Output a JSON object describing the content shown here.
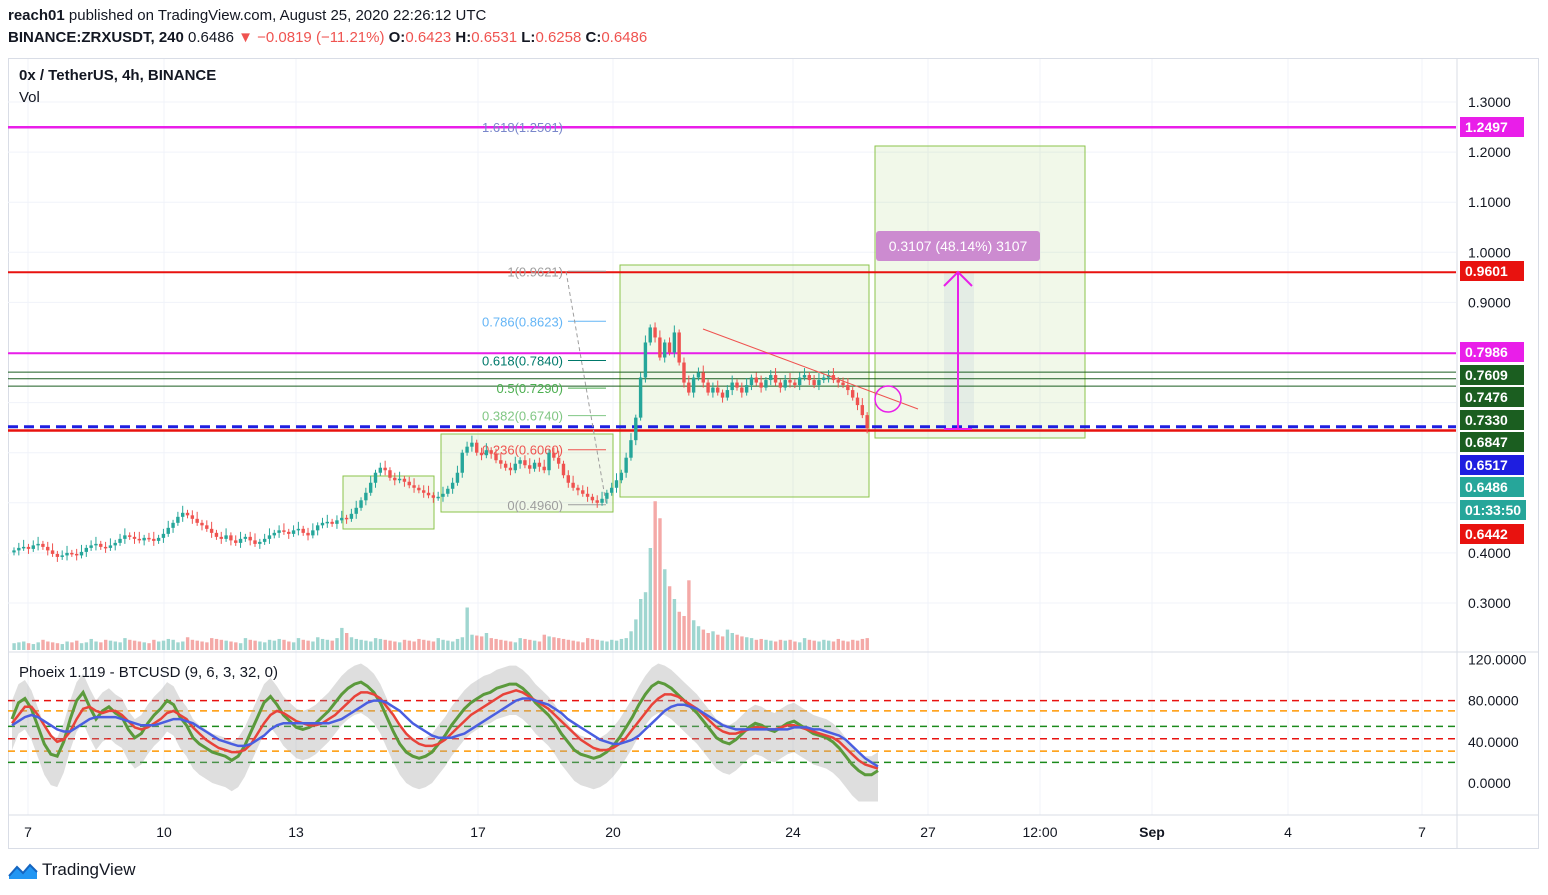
{
  "header": {
    "user": "reach01",
    "published_text": " published on TradingView.com, August 25, 2020 22:26:12 UTC",
    "symbol_line": "BINANCE:ZRXUSDT, 240",
    "price": "0.6486",
    "change": "−0.0819 (−11.21%)",
    "o_label": "O:",
    "o_val": "0.6423",
    "h_label": "H:",
    "h_val": "0.6531",
    "l_label": "L:",
    "l_val": "0.6258",
    "c_label": "C:",
    "c_val": "0.6486"
  },
  "pane": {
    "symbol_title": "0x / TetherUS, 4h, BINANCE",
    "volume_label": "Vol",
    "oscillator_title": "Phoeix 1.119 - BTCUSD (9, 6, 3, 32, 0)"
  },
  "price_tags": [
    {
      "text": "1.2497",
      "color": "#e91ee9"
    },
    {
      "text": "0.9601",
      "color": "#e8120f"
    },
    {
      "text": "0.7986",
      "color": "#e91ee9"
    },
    {
      "text": "0.7609",
      "color": "#1b5e20"
    },
    {
      "text": "0.7476",
      "color": "#1b5e20"
    },
    {
      "text": "0.7330",
      "color": "#1b5e20"
    },
    {
      "text": "0.6847",
      "color": "#1b5e20"
    },
    {
      "text": "0.6517",
      "color": "#1e1ee0"
    },
    {
      "text": "0.6486",
      "color": "#26a69a"
    },
    {
      "text": "01:33:50",
      "color": "#26a69a"
    },
    {
      "text": "0.6442",
      "color": "#e8120f"
    }
  ],
  "measure_label": "0.3107 (48.14%) 3107",
  "fib_labels": [
    {
      "text": "1.618(1.2501)",
      "color": "#7986cb"
    },
    {
      "text": "1(0.9621)",
      "color": "#9e9e9e"
    },
    {
      "text": "0.786(0.8623)",
      "color": "#64b5f6"
    },
    {
      "text": "0.618(0.7840)",
      "color": "#00796b"
    },
    {
      "text": "0.5(0.7290)",
      "color": "#4caf50"
    },
    {
      "text": "0.382(0.6740)",
      "color": "#81c784"
    },
    {
      "text": "0.236(0.6060)",
      "color": "#ef5350"
    },
    {
      "text": "0(0.4960)",
      "color": "#9e9e9e"
    }
  ],
  "footer": {
    "brand": "TradingView"
  },
  "chart_data": [
    {
      "type": "candlestick",
      "title": "0x / TetherUS, 4h, BINANCE",
      "ylim": [
        0.22,
        1.35
      ],
      "y_ticks": [
        "1.3000",
        "1.2000",
        "1.1000",
        "1.0000",
        "0.9000",
        "0.4000",
        "0.3000"
      ],
      "x_ticks": [
        "7",
        "10",
        "13",
        "17",
        "20",
        "24",
        "27",
        "12:00",
        "Sep",
        "4",
        "7"
      ],
      "closes": [
        0.405,
        0.41,
        0.412,
        0.408,
        0.415,
        0.418,
        0.412,
        0.405,
        0.398,
        0.392,
        0.395,
        0.4,
        0.398,
        0.395,
        0.402,
        0.41,
        0.415,
        0.418,
        0.412,
        0.41,
        0.415,
        0.42,
        0.428,
        0.435,
        0.432,
        0.428,
        0.425,
        0.43,
        0.428,
        0.424,
        0.43,
        0.438,
        0.45,
        0.46,
        0.472,
        0.48,
        0.475,
        0.468,
        0.46,
        0.455,
        0.448,
        0.44,
        0.432,
        0.428,
        0.435,
        0.425,
        0.42,
        0.428,
        0.432,
        0.425,
        0.418,
        0.422,
        0.428,
        0.435,
        0.44,
        0.445,
        0.442,
        0.438,
        0.445,
        0.448,
        0.44,
        0.435,
        0.445,
        0.455,
        0.46,
        0.462,
        0.458,
        0.465,
        0.47,
        0.468,
        0.478,
        0.49,
        0.505,
        0.52,
        0.54,
        0.56,
        0.57,
        0.565,
        0.55,
        0.545,
        0.548,
        0.542,
        0.535,
        0.53,
        0.525,
        0.52,
        0.515,
        0.51,
        0.512,
        0.518,
        0.528,
        0.54,
        0.56,
        0.6,
        0.612,
        0.62,
        0.6,
        0.595,
        0.605,
        0.598,
        0.585,
        0.578,
        0.57,
        0.565,
        0.578,
        0.585,
        0.575,
        0.568,
        0.58,
        0.572,
        0.565,
        0.6,
        0.59,
        0.578,
        0.555,
        0.54,
        0.53,
        0.525,
        0.518,
        0.512,
        0.505,
        0.5,
        0.508,
        0.52,
        0.53,
        0.545,
        0.56,
        0.59,
        0.625,
        0.67,
        0.75,
        0.82,
        0.85,
        0.83,
        0.79,
        0.82,
        0.8,
        0.84,
        0.78,
        0.74,
        0.72,
        0.75,
        0.76,
        0.74,
        0.72,
        0.73,
        0.72,
        0.71,
        0.725,
        0.74,
        0.73,
        0.72,
        0.735,
        0.75,
        0.74,
        0.73,
        0.745,
        0.755,
        0.74,
        0.73,
        0.745,
        0.74,
        0.735,
        0.75,
        0.755,
        0.745,
        0.735,
        0.745,
        0.75,
        0.755,
        0.745,
        0.74,
        0.735,
        0.725,
        0.71,
        0.695,
        0.675,
        0.6486
      ],
      "volume": [
        8,
        9,
        10,
        8,
        7,
        9,
        12,
        10,
        9,
        8,
        7,
        10,
        9,
        11,
        8,
        9,
        13,
        10,
        9,
        12,
        11,
        10,
        9,
        14,
        12,
        11,
        10,
        9,
        8,
        12,
        10,
        11,
        13,
        12,
        9,
        10,
        15,
        12,
        11,
        10,
        9,
        14,
        13,
        12,
        11,
        10,
        9,
        8,
        14,
        12,
        11,
        10,
        9,
        12,
        11,
        13,
        12,
        10,
        9,
        14,
        12,
        11,
        10,
        15,
        13,
        12,
        11,
        14,
        26,
        20,
        15,
        13,
        12,
        11,
        10,
        14,
        13,
        12,
        11,
        10,
        9,
        12,
        11,
        10,
        13,
        12,
        11,
        10,
        14,
        12,
        11,
        10,
        13,
        15,
        50,
        18,
        17,
        16,
        20,
        14,
        13,
        12,
        11,
        10,
        9,
        14,
        13,
        12,
        11,
        10,
        18,
        16,
        15,
        14,
        13,
        12,
        11,
        10,
        9,
        14,
        13,
        12,
        11,
        10,
        12,
        11,
        13,
        14,
        22,
        36,
        60,
        68,
        120,
        175,
        155,
        95,
        75,
        60,
        45,
        40,
        82,
        35,
        28,
        24,
        20,
        22,
        18,
        16,
        24,
        20,
        18,
        16,
        15,
        14,
        12,
        13,
        12,
        11,
        10,
        12,
        11,
        12,
        10,
        9,
        14,
        12,
        11,
        10,
        12,
        11,
        10,
        13,
        11,
        10,
        12,
        11,
        13,
        14,
        15,
        16,
        8
      ]
    },
    {
      "type": "line",
      "title": "Phoeix 1.119 - BTCUSD (9, 6, 3, 32, 0)",
      "ylim": [
        -20,
        125
      ],
      "y_ticks": [
        "120.0000",
        "80.0000",
        "40.0000",
        "0.0000"
      ],
      "levels": [
        80,
        70,
        55,
        43,
        31,
        20
      ],
      "series": [
        {
          "color": "#5b9a3c",
          "values": [
            62,
            78,
            82,
            72,
            55,
            38,
            28,
            26,
            40,
            62,
            80,
            88,
            74,
            62,
            70,
            74,
            68,
            64,
            52,
            44,
            48,
            58,
            66,
            72,
            80,
            76,
            64,
            56,
            44,
            38,
            34,
            30,
            28,
            26,
            22,
            26,
            36,
            50,
            64,
            78,
            84,
            76,
            66,
            60,
            54,
            52,
            54,
            58,
            64,
            70,
            78,
            86,
            92,
            96,
            98,
            94,
            88,
            78,
            64,
            50,
            38,
            30,
            26,
            24,
            26,
            30,
            38,
            46,
            56,
            64,
            72,
            78,
            82,
            86,
            88,
            92,
            94,
            96,
            96,
            92,
            86,
            78,
            72,
            66,
            58,
            48,
            40,
            32,
            28,
            26,
            24,
            26,
            30,
            36,
            44,
            54,
            64,
            76,
            86,
            94,
            98,
            96,
            92,
            86,
            80,
            74,
            68,
            60,
            52,
            44,
            40,
            38,
            42,
            48,
            54,
            58,
            56,
            52,
            50,
            54,
            58,
            60,
            56,
            52,
            48,
            46,
            44,
            40,
            34,
            26,
            18,
            12,
            8,
            8,
            12
          ]
        },
        {
          "color": "#e8433a",
          "values": [
            58,
            66,
            74,
            74,
            66,
            56,
            46,
            40,
            42,
            50,
            62,
            72,
            74,
            70,
            68,
            70,
            70,
            66,
            60,
            54,
            52,
            54,
            58,
            62,
            68,
            70,
            66,
            62,
            54,
            48,
            42,
            38,
            34,
            32,
            30,
            30,
            32,
            38,
            48,
            58,
            66,
            70,
            68,
            64,
            60,
            58,
            56,
            56,
            58,
            62,
            66,
            72,
            78,
            84,
            88,
            88,
            86,
            82,
            74,
            66,
            56,
            48,
            42,
            38,
            36,
            36,
            38,
            42,
            48,
            54,
            60,
            66,
            70,
            74,
            78,
            82,
            86,
            88,
            90,
            88,
            84,
            80,
            76,
            72,
            66,
            60,
            54,
            48,
            42,
            38,
            34,
            32,
            32,
            34,
            38,
            44,
            52,
            60,
            68,
            76,
            82,
            86,
            86,
            84,
            80,
            76,
            72,
            66,
            60,
            54,
            50,
            48,
            48,
            50,
            52,
            54,
            54,
            52,
            52,
            54,
            56,
            56,
            54,
            52,
            50,
            48,
            46,
            44,
            40,
            34,
            28,
            22,
            18,
            16,
            14
          ]
        },
        {
          "color": "#4a5ee0",
          "values": [
            56,
            60,
            64,
            66,
            64,
            60,
            56,
            52,
            50,
            50,
            54,
            58,
            62,
            64,
            64,
            64,
            64,
            62,
            60,
            58,
            56,
            56,
            56,
            58,
            60,
            62,
            62,
            60,
            58,
            54,
            50,
            46,
            42,
            40,
            38,
            36,
            36,
            38,
            42,
            46,
            52,
            56,
            58,
            58,
            58,
            58,
            58,
            58,
            58,
            58,
            60,
            62,
            66,
            70,
            74,
            78,
            80,
            80,
            78,
            74,
            70,
            64,
            58,
            54,
            50,
            46,
            44,
            44,
            44,
            46,
            48,
            52,
            56,
            60,
            64,
            68,
            72,
            76,
            80,
            82,
            82,
            80,
            78,
            76,
            72,
            68,
            62,
            58,
            54,
            50,
            46,
            42,
            40,
            38,
            38,
            40,
            42,
            46,
            52,
            58,
            64,
            70,
            74,
            76,
            76,
            74,
            72,
            68,
            64,
            60,
            56,
            54,
            52,
            52,
            52,
            52,
            52,
            52,
            52,
            52,
            52,
            54,
            54,
            54,
            52,
            52,
            50,
            48,
            46,
            42,
            36,
            30,
            24,
            20,
            16
          ]
        }
      ]
    }
  ]
}
